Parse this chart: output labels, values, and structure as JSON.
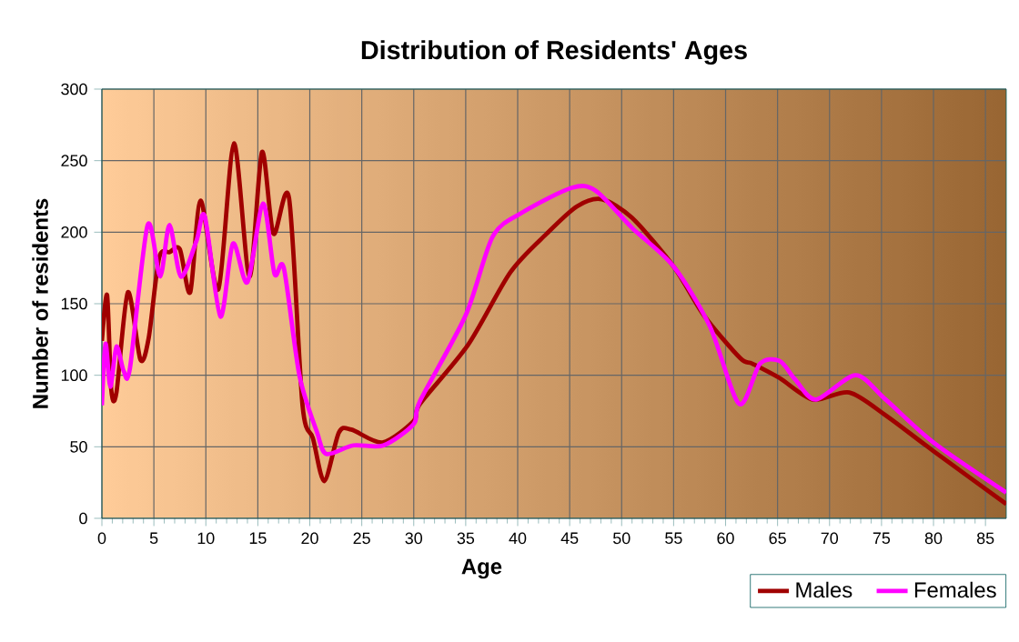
{
  "chart_data": {
    "type": "line",
    "title": "Distribution of Residents' Ages",
    "xlabel": "Age",
    "ylabel": "Number of residents",
    "xlim": [
      0,
      87
    ],
    "xticks": [
      0,
      5,
      10,
      15,
      20,
      25,
      30,
      35,
      40,
      45,
      50,
      55,
      60,
      65,
      70,
      75,
      80,
      85
    ],
    "ylim": [
      0,
      300
    ],
    "yticks": [
      0,
      50,
      100,
      150,
      200,
      250,
      300
    ],
    "grid": true,
    "legend": "bottom right",
    "marker": "none",
    "line_style": "solid",
    "series": [
      {
        "name": "Males",
        "color": "#a00000",
        "x": [
          0,
          0.5,
          0.9,
          1.4,
          2.5,
          3.7,
          4.5,
          5.5,
          6.5,
          7.5,
          8.5,
          9.5,
          11.2,
          12.7,
          14.2,
          15.4,
          16.5,
          18,
          19.3,
          20.3,
          21.4,
          22.8,
          24,
          27,
          30,
          30.6,
          35.2,
          39.3,
          42.8,
          45.7,
          48.1,
          51,
          55,
          57.9,
          61.4,
          62.6,
          65.2,
          68.4,
          71.9,
          75.4,
          80,
          87
        ],
        "values": [
          124,
          156,
          90,
          88,
          158,
          111,
          126,
          182,
          186,
          188,
          158,
          222,
          160,
          262,
          169,
          256,
          199,
          224,
          79,
          56,
          26,
          60,
          62,
          53,
          68,
          80,
          121,
          172,
          199,
          218,
          223,
          210,
          176,
          142,
          112,
          108,
          98,
          83,
          88,
          72,
          47,
          10
        ]
      },
      {
        "name": "Females",
        "color": "#ff00ff",
        "x": [
          0,
          0.35,
          0.81,
          1.4,
          2.1,
          2.7,
          4.4,
          5.6,
          6.5,
          7.6,
          9.1,
          9.9,
          11.4,
          12.6,
          14,
          15.5,
          16.6,
          17.5,
          19,
          20.7,
          21.6,
          24.2,
          27.1,
          30,
          30.6,
          35,
          37.6,
          40.5,
          45.2,
          47.5,
          51,
          55,
          58.5,
          61.3,
          63.3,
          65.2,
          66.7,
          68.7,
          72.5,
          75.4,
          80,
          87
        ],
        "values": [
          79,
          122,
          92,
          120,
          103,
          105,
          205,
          169,
          205,
          169,
          194,
          211,
          141,
          192,
          165,
          220,
          171,
          175,
          100,
          60,
          45,
          51,
          51,
          66,
          82,
          142,
          197,
          214,
          231,
          229,
          203,
          176,
          134,
          80,
          108,
          110,
          97,
          83,
          100,
          83,
          53,
          18
        ]
      }
    ]
  }
}
